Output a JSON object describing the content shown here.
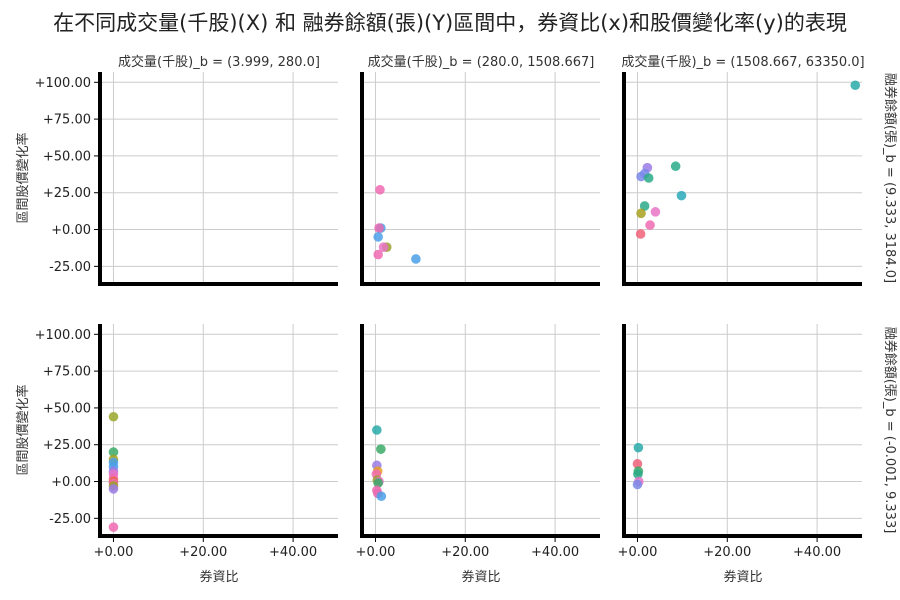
{
  "chart_data": {
    "type": "scatter",
    "title": "在不同成交量(千股)(X) 和 融券餘額(張)(Y)區間中，券資比(x)和股價變化率(y)的表現",
    "xlabel": "券資比",
    "ylabel": "區間股價變化率",
    "xlim": [
      -3,
      50
    ],
    "ylim": [
      -37,
      107
    ],
    "x_ticks": [
      0,
      20,
      40
    ],
    "x_tick_labels": [
      "+0.00",
      "+20.00",
      "+40.00"
    ],
    "y_ticks": [
      100,
      75,
      50,
      25,
      0,
      -25
    ],
    "y_tick_labels": [
      "+100.00",
      "+75.00",
      "+50.00",
      "+25.00",
      "+0.00",
      "-25.00"
    ],
    "grid": true,
    "col_titles": [
      "成交量(千股)_b = (3.999, 280.0]",
      "成交量(千股)_b = (280.0, 1508.667]",
      "成交量(千股)_b = (1508.667, 63350.0]"
    ],
    "row_titles": [
      "融券餘額(張)_b = (9.333, 3184.0]",
      "融券餘額(張)_b = (-0.001, 9.333]"
    ],
    "panels": [
      {
        "row": 0,
        "col": 0,
        "points": []
      },
      {
        "row": 0,
        "col": 1,
        "points": [
          [
            1.0,
            27,
            "#f06ab0"
          ],
          [
            1.2,
            1,
            "#4aa0e8"
          ],
          [
            0.8,
            1,
            "#e86ab0"
          ],
          [
            0.6,
            -5,
            "#4aa0e8"
          ],
          [
            2.5,
            -12,
            "#9aa02a"
          ],
          [
            1.8,
            -12,
            "#e873c6"
          ],
          [
            0.6,
            -17,
            "#f06ab0"
          ],
          [
            9.0,
            -20,
            "#4aa0e8"
          ]
        ]
      },
      {
        "row": 0,
        "col": 2,
        "points": [
          [
            48.5,
            98,
            "#2aaaaa"
          ],
          [
            2.2,
            42,
            "#9a7ae6"
          ],
          [
            8.5,
            43,
            "#2aaa88"
          ],
          [
            1.6,
            38,
            "#7a8ae8"
          ],
          [
            0.8,
            36,
            "#7a8ae8"
          ],
          [
            2.5,
            35,
            "#2aaa88"
          ],
          [
            9.8,
            23,
            "#2aa8b8"
          ],
          [
            1.6,
            16,
            "#2aaa88"
          ],
          [
            0.8,
            11,
            "#a8a020"
          ],
          [
            4.0,
            12,
            "#e873c6"
          ],
          [
            2.8,
            3,
            "#f06ab0"
          ],
          [
            0.7,
            -3,
            "#f0607a"
          ]
        ]
      },
      {
        "row": 1,
        "col": 0,
        "points": [
          [
            0,
            44,
            "#9aa82a"
          ],
          [
            0,
            20,
            "#3aaa66"
          ],
          [
            0,
            15,
            "#a8a020"
          ],
          [
            0,
            13,
            "#4aa0e8"
          ],
          [
            0,
            10,
            "#4aa0e8"
          ],
          [
            0,
            7,
            "#9a7ae6"
          ],
          [
            0,
            5,
            "#e873c6"
          ],
          [
            0,
            2,
            "#f06ab0"
          ],
          [
            0,
            0,
            "#e86a20"
          ],
          [
            0,
            -1,
            "#f06ab0"
          ],
          [
            0,
            -3,
            "#9aa02a"
          ],
          [
            0,
            -5,
            "#9a7ae6"
          ],
          [
            0,
            -31,
            "#f06ab0"
          ]
        ]
      },
      {
        "row": 1,
        "col": 1,
        "points": [
          [
            0.3,
            35,
            "#2aaaaa"
          ],
          [
            1.2,
            22,
            "#3aaa66"
          ],
          [
            0.3,
            11,
            "#9a7ae6"
          ],
          [
            0.5,
            7,
            "#e8a020"
          ],
          [
            0.2,
            5,
            "#f06ab0"
          ],
          [
            0.4,
            1,
            "#9aa02a"
          ],
          [
            0.8,
            0,
            "#e873c6"
          ],
          [
            0.6,
            -1,
            "#3aaa66"
          ],
          [
            0.3,
            -6,
            "#f06ab0"
          ],
          [
            0.5,
            -8,
            "#e86ab0"
          ],
          [
            1.3,
            -10,
            "#4aa0e8"
          ]
        ]
      },
      {
        "row": 1,
        "col": 2,
        "points": [
          [
            0.2,
            23,
            "#2aaaaa"
          ],
          [
            0.0,
            12,
            "#f0607a"
          ],
          [
            0.2,
            7,
            "#3aaa66"
          ],
          [
            0.1,
            5,
            "#2aaa88"
          ],
          [
            0.3,
            0,
            "#e873c6"
          ],
          [
            0.0,
            -2,
            "#7a8ae8"
          ]
        ]
      }
    ]
  }
}
